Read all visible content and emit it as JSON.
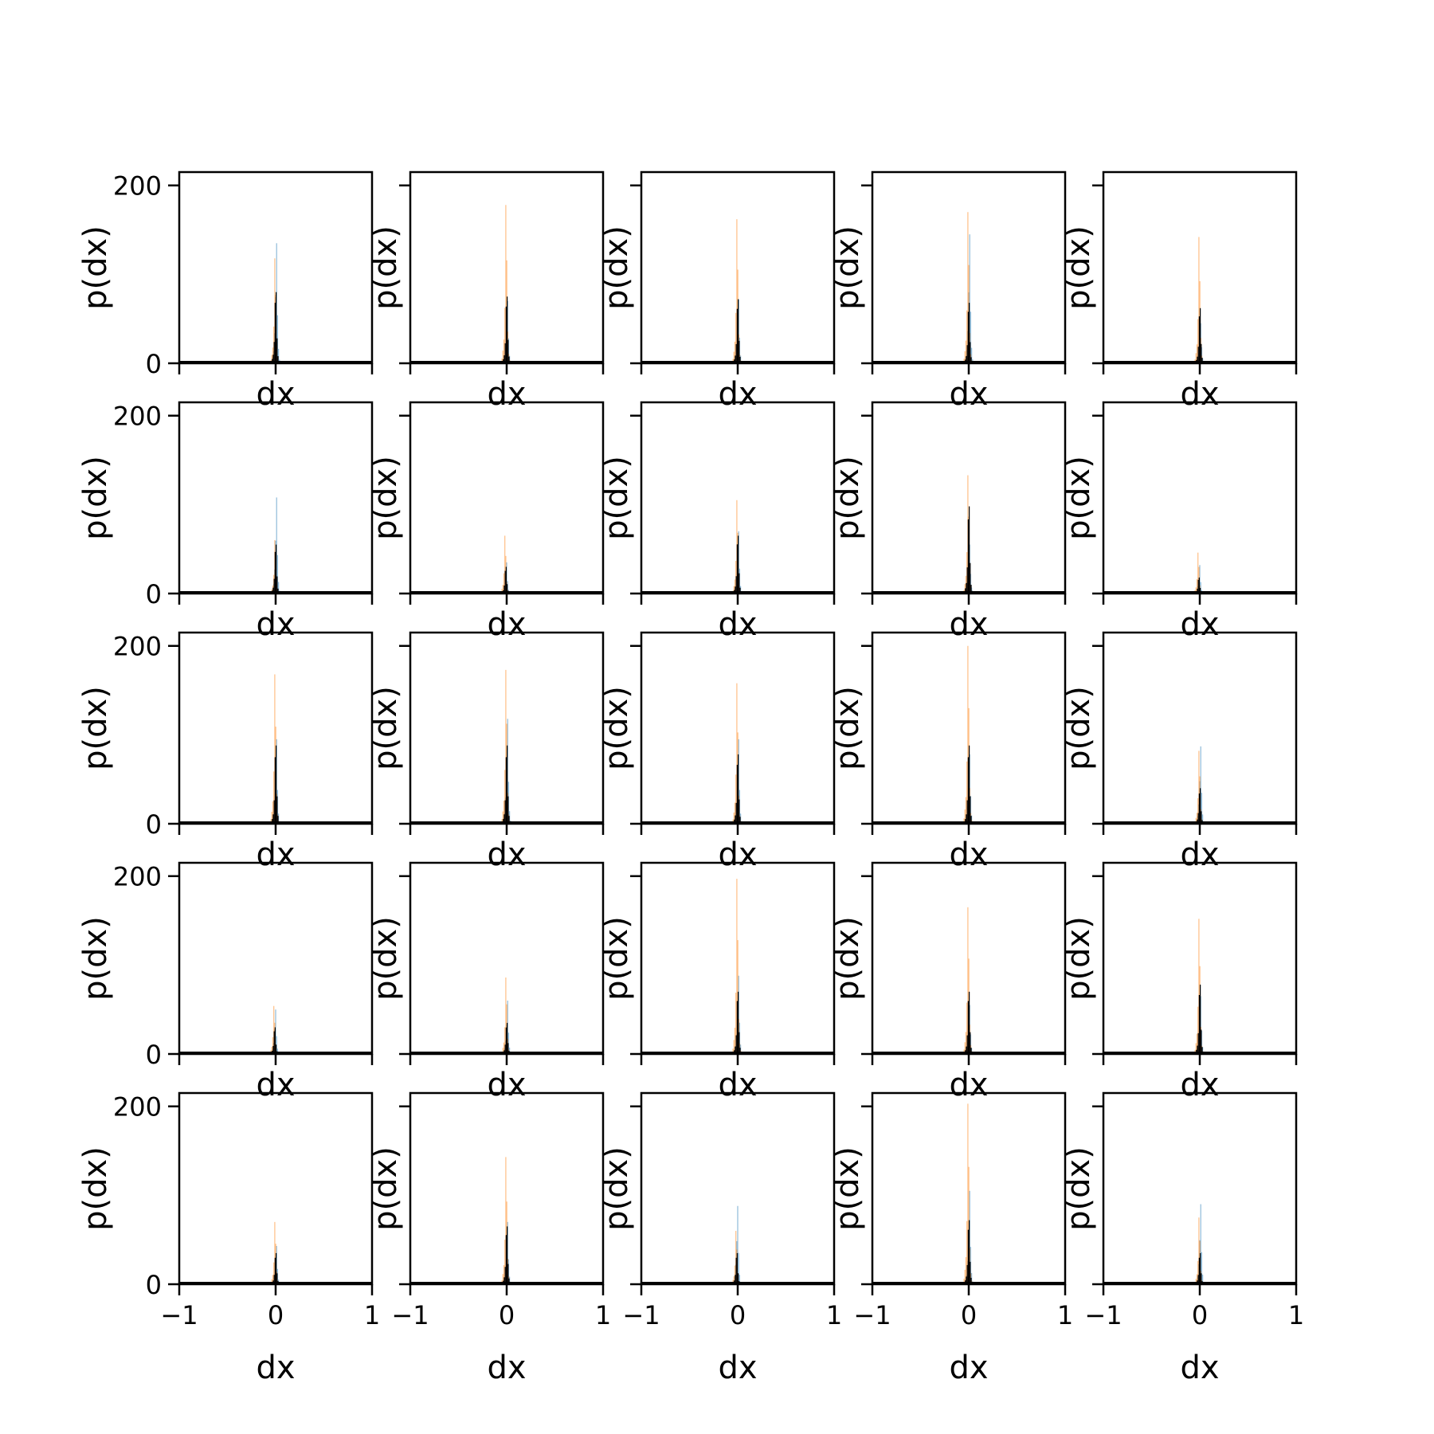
{
  "figure": {
    "layout": {
      "rows": 5,
      "cols": 5
    }
  },
  "chart_data": {
    "type": "bar",
    "subtype": "overlaid histograms (5x5 grid of panels)",
    "xlabel": "dx",
    "ylabel": "p(dx)",
    "xlim": [
      -1,
      1
    ],
    "ylim": [
      0,
      215
    ],
    "x_ticks": [
      -1,
      0,
      1
    ],
    "x_tick_labels": [
      "−1",
      "0",
      "1"
    ],
    "y_ticks": [
      0,
      200
    ],
    "y_tick_labels": [
      "0",
      "200"
    ],
    "grid": false,
    "legend": "none",
    "series_colors": [
      "#1f77b4",
      "#ff7f0e",
      "#000000"
    ],
    "series_alpha": [
      0.5,
      0.5,
      1.0
    ],
    "bin_width": 0.01,
    "bins_offsets": [
      -0.05,
      -0.04,
      -0.03,
      -0.02,
      -0.01,
      0.0,
      0.01,
      0.02,
      0.03
    ],
    "panels": [
      {
        "center": 0.0,
        "peaks": [
          135,
          118,
          80
        ]
      },
      {
        "center": 0.0,
        "peaks": [
          70,
          178,
          75
        ]
      },
      {
        "center": 0.0,
        "peaks": [
          72,
          162,
          72
        ]
      },
      {
        "center": 0.0,
        "peaks": [
          145,
          170,
          68
        ]
      },
      {
        "center": 0.0,
        "peaks": [
          45,
          142,
          62
        ]
      },
      {
        "center": 0.0,
        "peaks": [
          108,
          60,
          55
        ]
      },
      {
        "center": -0.01,
        "peaks": [
          35,
          65,
          30
        ]
      },
      {
        "center": 0.0,
        "peaks": [
          70,
          105,
          65
        ]
      },
      {
        "center": 0.0,
        "peaks": [
          55,
          133,
          98
        ]
      },
      {
        "center": -0.01,
        "peaks": [
          32,
          46,
          18
        ]
      },
      {
        "center": 0.0,
        "peaks": [
          95,
          168,
          88
        ]
      },
      {
        "center": 0.0,
        "peaks": [
          118,
          173,
          88
        ]
      },
      {
        "center": 0.0,
        "peaks": [
          95,
          158,
          78
        ]
      },
      {
        "center": 0.0,
        "peaks": [
          78,
          200,
          88
        ]
      },
      {
        "center": 0.0,
        "peaks": [
          87,
          82,
          40
        ]
      },
      {
        "center": -0.01,
        "peaks": [
          50,
          54,
          30
        ]
      },
      {
        "center": 0.0,
        "peaks": [
          60,
          86,
          35
        ]
      },
      {
        "center": 0.0,
        "peaks": [
          88,
          197,
          70
        ]
      },
      {
        "center": 0.0,
        "peaks": [
          55,
          165,
          70
        ]
      },
      {
        "center": 0.0,
        "peaks": [
          65,
          152,
          78
        ]
      },
      {
        "center": 0.0,
        "peaks": [
          43,
          70,
          35
        ]
      },
      {
        "center": 0.0,
        "peaks": [
          70,
          143,
          65
        ]
      },
      {
        "center": -0.01,
        "peaks": [
          88,
          60,
          35
        ]
      },
      {
        "center": 0.0,
        "peaks": [
          105,
          203,
          72
        ]
      },
      {
        "center": 0.0,
        "peaks": [
          90,
          75,
          35
        ]
      }
    ]
  }
}
